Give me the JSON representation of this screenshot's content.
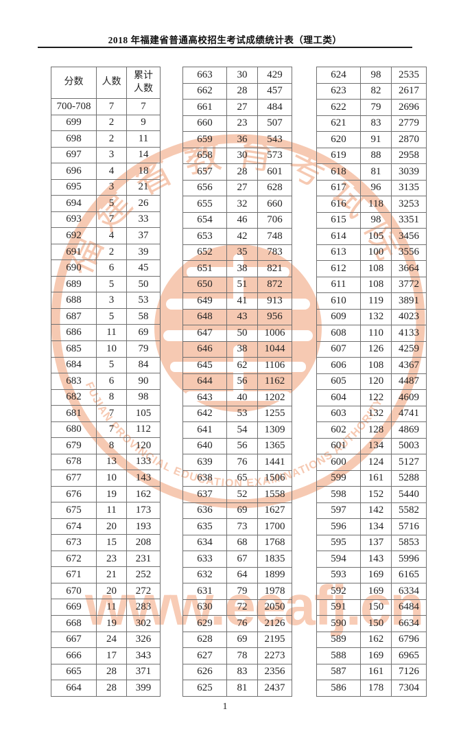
{
  "page": {
    "title": "2018 年福建省普通高校招生考试成绩统计表（理工类）",
    "page_number": "1"
  },
  "colors": {
    "watermark": "#f6c9b2",
    "table_border": "#6f6f6f",
    "text": "#222222"
  },
  "watermark": {
    "seal_chinese": "福建省教育考试院",
    "seal_english": "FUJIAN PROVINCIAL EDUCATION EXAMINATIONS AUTHORITY",
    "url_text": "www.eeafj.cn"
  },
  "table_header": {
    "score": "分数",
    "count": "人数",
    "cumulative_line1": "累计",
    "cumulative_line2": "人数"
  },
  "tables": [
    {
      "name": "column-1",
      "rows": [
        [
          "700-708",
          "7",
          "7"
        ],
        [
          "699",
          "2",
          "9"
        ],
        [
          "698",
          "2",
          "11"
        ],
        [
          "697",
          "3",
          "14"
        ],
        [
          "696",
          "4",
          "18"
        ],
        [
          "695",
          "3",
          "21"
        ],
        [
          "694",
          "5",
          "26"
        ],
        [
          "693",
          "7",
          "33"
        ],
        [
          "692",
          "4",
          "37"
        ],
        [
          "691",
          "2",
          "39"
        ],
        [
          "690",
          "6",
          "45"
        ],
        [
          "689",
          "5",
          "50"
        ],
        [
          "688",
          "3",
          "53"
        ],
        [
          "687",
          "5",
          "58"
        ],
        [
          "686",
          "11",
          "69"
        ],
        [
          "685",
          "10",
          "79"
        ],
        [
          "684",
          "5",
          "84"
        ],
        [
          "683",
          "6",
          "90"
        ],
        [
          "682",
          "8",
          "98"
        ],
        [
          "681",
          "7",
          "105"
        ],
        [
          "680",
          "7",
          "112"
        ],
        [
          "679",
          "8",
          "120"
        ],
        [
          "678",
          "13",
          "133"
        ],
        [
          "677",
          "10",
          "143"
        ],
        [
          "676",
          "19",
          "162"
        ],
        [
          "675",
          "11",
          "173"
        ],
        [
          "674",
          "20",
          "193"
        ],
        [
          "673",
          "15",
          "208"
        ],
        [
          "672",
          "23",
          "231"
        ],
        [
          "671",
          "21",
          "252"
        ],
        [
          "670",
          "20",
          "272"
        ],
        [
          "669",
          "11",
          "283"
        ],
        [
          "668",
          "19",
          "302"
        ],
        [
          "667",
          "24",
          "326"
        ],
        [
          "666",
          "17",
          "343"
        ],
        [
          "665",
          "28",
          "371"
        ],
        [
          "664",
          "28",
          "399"
        ]
      ]
    },
    {
      "name": "column-2",
      "rows": [
        [
          "663",
          "30",
          "429"
        ],
        [
          "662",
          "28",
          "457"
        ],
        [
          "661",
          "27",
          "484"
        ],
        [
          "660",
          "23",
          "507"
        ],
        [
          "659",
          "36",
          "543"
        ],
        [
          "658",
          "30",
          "573"
        ],
        [
          "657",
          "28",
          "601"
        ],
        [
          "656",
          "27",
          "628"
        ],
        [
          "655",
          "32",
          "660"
        ],
        [
          "654",
          "46",
          "706"
        ],
        [
          "653",
          "42",
          "748"
        ],
        [
          "652",
          "35",
          "783"
        ],
        [
          "651",
          "38",
          "821"
        ],
        [
          "650",
          "51",
          "872"
        ],
        [
          "649",
          "41",
          "913"
        ],
        [
          "648",
          "43",
          "956"
        ],
        [
          "647",
          "50",
          "1006"
        ],
        [
          "646",
          "38",
          "1044"
        ],
        [
          "645",
          "62",
          "1106"
        ],
        [
          "644",
          "56",
          "1162"
        ],
        [
          "643",
          "40",
          "1202"
        ],
        [
          "642",
          "53",
          "1255"
        ],
        [
          "641",
          "54",
          "1309"
        ],
        [
          "640",
          "56",
          "1365"
        ],
        [
          "639",
          "76",
          "1441"
        ],
        [
          "638",
          "65",
          "1506"
        ],
        [
          "637",
          "52",
          "1558"
        ],
        [
          "636",
          "69",
          "1627"
        ],
        [
          "635",
          "73",
          "1700"
        ],
        [
          "634",
          "68",
          "1768"
        ],
        [
          "633",
          "67",
          "1835"
        ],
        [
          "632",
          "64",
          "1899"
        ],
        [
          "631",
          "79",
          "1978"
        ],
        [
          "630",
          "72",
          "2050"
        ],
        [
          "629",
          "76",
          "2126"
        ],
        [
          "628",
          "69",
          "2195"
        ],
        [
          "627",
          "78",
          "2273"
        ],
        [
          "626",
          "83",
          "2356"
        ],
        [
          "625",
          "81",
          "2437"
        ]
      ]
    },
    {
      "name": "column-3",
      "rows": [
        [
          "624",
          "98",
          "2535"
        ],
        [
          "623",
          "82",
          "2617"
        ],
        [
          "622",
          "79",
          "2696"
        ],
        [
          "621",
          "83",
          "2779"
        ],
        [
          "620",
          "91",
          "2870"
        ],
        [
          "619",
          "88",
          "2958"
        ],
        [
          "618",
          "81",
          "3039"
        ],
        [
          "617",
          "96",
          "3135"
        ],
        [
          "616",
          "118",
          "3253"
        ],
        [
          "615",
          "98",
          "3351"
        ],
        [
          "614",
          "105",
          "3456"
        ],
        [
          "613",
          "100",
          "3556"
        ],
        [
          "612",
          "108",
          "3664"
        ],
        [
          "611",
          "108",
          "3772"
        ],
        [
          "610",
          "119",
          "3891"
        ],
        [
          "609",
          "132",
          "4023"
        ],
        [
          "608",
          "110",
          "4133"
        ],
        [
          "607",
          "126",
          "4259"
        ],
        [
          "606",
          "108",
          "4367"
        ],
        [
          "605",
          "120",
          "4487"
        ],
        [
          "604",
          "122",
          "4609"
        ],
        [
          "603",
          "132",
          "4741"
        ],
        [
          "602",
          "128",
          "4869"
        ],
        [
          "601",
          "134",
          "5003"
        ],
        [
          "600",
          "124",
          "5127"
        ],
        [
          "599",
          "161",
          "5288"
        ],
        [
          "598",
          "152",
          "5440"
        ],
        [
          "597",
          "142",
          "5582"
        ],
        [
          "596",
          "134",
          "5716"
        ],
        [
          "595",
          "137",
          "5853"
        ],
        [
          "594",
          "143",
          "5996"
        ],
        [
          "593",
          "169",
          "6165"
        ],
        [
          "592",
          "169",
          "6334"
        ],
        [
          "591",
          "150",
          "6484"
        ],
        [
          "590",
          "150",
          "6634"
        ],
        [
          "589",
          "162",
          "6796"
        ],
        [
          "588",
          "169",
          "6965"
        ],
        [
          "587",
          "161",
          "7126"
        ],
        [
          "586",
          "178",
          "7304"
        ]
      ]
    }
  ]
}
